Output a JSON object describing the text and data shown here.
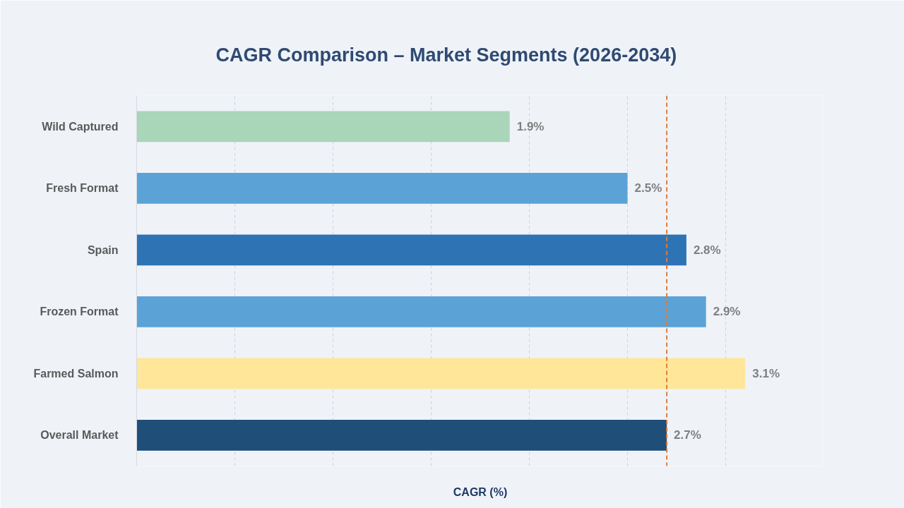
{
  "chart_data": {
    "type": "bar",
    "orientation": "horizontal",
    "title": "CAGR Comparison – Market Segments (2026-2034)",
    "xlabel": "CAGR (%)",
    "categories": [
      "Wild Captured",
      "Fresh Format",
      "Spain",
      "Frozen Format",
      "Farmed Salmon",
      "Overall Market"
    ],
    "values": [
      1.9,
      2.5,
      2.8,
      2.9,
      3.1,
      2.7
    ],
    "colors": [
      "#a9d5b8",
      "#5ba3d6",
      "#2e74b5",
      "#5ba3d6",
      "#ffe699",
      "#1f4e79"
    ],
    "value_labels": [
      "1.9%",
      "2.5%",
      "2.8%",
      "2.9%",
      "3.1%",
      "2.7%"
    ],
    "xlim": [
      0,
      3.5
    ],
    "xticks": [
      {
        "value": 0,
        "label": null
      },
      {
        "value": 0.5,
        "label": null
      },
      {
        "value": 1,
        "label": null
      },
      {
        "value": 1.5,
        "label": null
      },
      {
        "value": 2,
        "label": null
      },
      {
        "value": 2.5,
        "label": null
      },
      {
        "value": 3,
        "label": null
      },
      {
        "value": 3.5,
        "label": null
      }
    ],
    "ref_lines": [
      {
        "axis": "x",
        "value": 2.7,
        "color": "#e07b39",
        "line_style": "dashed"
      }
    ],
    "grid": "x",
    "tick_labels": "y"
  }
}
